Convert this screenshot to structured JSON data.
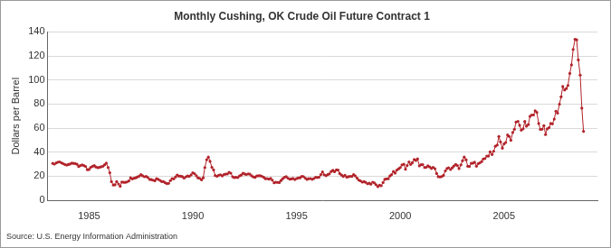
{
  "chart_data": {
    "type": "line",
    "title": "Monthly Cushing, OK Crude Oil Future Contract 1",
    "y_label": "Dollars per Barrel",
    "source": "Source: U.S. Energy Information Administration",
    "color": "#b2232a",
    "marker": "circle",
    "line_style": "solid",
    "grid": true,
    "xlim": [
      1983,
      2009.5
    ],
    "xticks": [
      1985,
      1990,
      1995,
      2000,
      2005
    ],
    "ylim": [
      0,
      140
    ],
    "yticks": [
      0,
      20,
      40,
      60,
      80,
      100,
      120,
      140
    ],
    "x": [
      1983.25,
      1983.33,
      1983.42,
      1983.5,
      1983.58,
      1983.67,
      1983.75,
      1983.83,
      1983.92,
      1984,
      1984.08,
      1984.17,
      1984.25,
      1984.33,
      1984.42,
      1984.5,
      1984.58,
      1984.67,
      1984.75,
      1984.83,
      1984.92,
      1985,
      1985.08,
      1985.17,
      1985.25,
      1985.33,
      1985.42,
      1985.5,
      1985.58,
      1985.67,
      1985.75,
      1985.83,
      1985.92,
      1986,
      1986.08,
      1986.17,
      1986.25,
      1986.33,
      1986.42,
      1986.5,
      1986.58,
      1986.67,
      1986.75,
      1986.83,
      1986.92,
      1987,
      1987.08,
      1987.17,
      1987.25,
      1987.33,
      1987.42,
      1987.5,
      1987.58,
      1987.67,
      1987.75,
      1987.83,
      1987.92,
      1988,
      1988.08,
      1988.17,
      1988.25,
      1988.33,
      1988.42,
      1988.5,
      1988.58,
      1988.67,
      1988.75,
      1988.83,
      1988.92,
      1989,
      1989.08,
      1989.17,
      1989.25,
      1989.33,
      1989.42,
      1989.5,
      1989.58,
      1989.67,
      1989.75,
      1989.83,
      1989.92,
      1990,
      1990.08,
      1990.17,
      1990.25,
      1990.33,
      1990.42,
      1990.5,
      1990.58,
      1990.67,
      1990.75,
      1990.83,
      1990.92,
      1991,
      1991.08,
      1991.17,
      1991.25,
      1991.33,
      1991.42,
      1991.5,
      1991.58,
      1991.67,
      1991.75,
      1991.83,
      1991.92,
      1992,
      1992.08,
      1992.17,
      1992.25,
      1992.33,
      1992.42,
      1992.5,
      1992.58,
      1992.67,
      1992.75,
      1992.83,
      1992.92,
      1993,
      1993.08,
      1993.17,
      1993.25,
      1993.33,
      1993.42,
      1993.5,
      1993.58,
      1993.67,
      1993.75,
      1993.83,
      1993.92,
      1994,
      1994.08,
      1994.17,
      1994.25,
      1994.33,
      1994.42,
      1994.5,
      1994.58,
      1994.67,
      1994.75,
      1994.83,
      1994.92,
      1995,
      1995.08,
      1995.17,
      1995.25,
      1995.33,
      1995.42,
      1995.5,
      1995.58,
      1995.67,
      1995.75,
      1995.83,
      1995.92,
      1996,
      1996.08,
      1996.17,
      1996.25,
      1996.33,
      1996.42,
      1996.5,
      1996.58,
      1996.67,
      1996.75,
      1996.83,
      1996.92,
      1997,
      1997.08,
      1997.17,
      1997.25,
      1997.33,
      1997.42,
      1997.5,
      1997.58,
      1997.67,
      1997.75,
      1997.83,
      1997.92,
      1998,
      1998.08,
      1998.17,
      1998.25,
      1998.33,
      1998.42,
      1998.5,
      1998.58,
      1998.67,
      1998.75,
      1998.83,
      1998.92,
      1999,
      1999.08,
      1999.17,
      1999.25,
      1999.33,
      1999.42,
      1999.5,
      1999.58,
      1999.67,
      1999.75,
      1999.83,
      1999.92,
      2000,
      2000.08,
      2000.17,
      2000.25,
      2000.33,
      2000.42,
      2000.5,
      2000.58,
      2000.67,
      2000.75,
      2000.83,
      2000.92,
      2001,
      2001.08,
      2001.17,
      2001.25,
      2001.33,
      2001.42,
      2001.5,
      2001.58,
      2001.67,
      2001.75,
      2001.83,
      2001.92,
      2002,
      2002.08,
      2002.17,
      2002.25,
      2002.33,
      2002.42,
      2002.5,
      2002.58,
      2002.67,
      2002.75,
      2002.83,
      2002.92,
      2003,
      2003.08,
      2003.17,
      2003.25,
      2003.33,
      2003.42,
      2003.5,
      2003.58,
      2003.67,
      2003.75,
      2003.83,
      2003.92,
      2004,
      2004.08,
      2004.17,
      2004.25,
      2004.33,
      2004.42,
      2004.5,
      2004.58,
      2004.67,
      2004.75,
      2004.83,
      2004.92,
      2005,
      2005.08,
      2005.17,
      2005.25,
      2005.33,
      2005.42,
      2005.5,
      2005.58,
      2005.67,
      2005.75,
      2005.83,
      2005.92,
      2006,
      2006.08,
      2006.17,
      2006.25,
      2006.33,
      2006.42,
      2006.5,
      2006.58,
      2006.67,
      2006.75,
      2006.83,
      2006.92,
      2007,
      2007.08,
      2007.17,
      2007.25,
      2007.33,
      2007.42,
      2007.5,
      2007.58,
      2007.67,
      2007.75,
      2007.83,
      2007.92,
      2008,
      2008.08,
      2008.17,
      2008.25,
      2008.33,
      2008.42,
      2008.5,
      2008.58,
      2008.67,
      2008.75,
      2008.83
    ],
    "values": [
      30.6,
      30.0,
      31.0,
      31.7,
      31.9,
      31.1,
      30.4,
      29.8,
      29.2,
      29.7,
      30.1,
      30.8,
      30.6,
      30.5,
      29.9,
      28.0,
      28.8,
      29.3,
      28.8,
      28.1,
      25.4,
      25.6,
      27.3,
      28.2,
      28.8,
      27.6,
      27.1,
      27.3,
      27.8,
      28.3,
      29.5,
      30.8,
      27.2,
      22.9,
      15.4,
      12.6,
      12.8,
      15.4,
      13.5,
      11.6,
      15.1,
      14.9,
      14.9,
      15.2,
      16.1,
      18.7,
      17.7,
      18.3,
      18.6,
      19.4,
      20.0,
      21.4,
      20.3,
      19.5,
      19.8,
      18.9,
      17.3,
      17.1,
      16.7,
      16.2,
      17.9,
      17.4,
      16.5,
      15.5,
      15.5,
      14.5,
      13.8,
      14.0,
      16.3,
      18.0,
      17.8,
      19.4,
      21.0,
      20.0,
      20.0,
      19.6,
      18.4,
      19.5,
      20.1,
      19.8,
      21.1,
      22.9,
      22.1,
      20.4,
      18.6,
      18.2,
      16.9,
      18.6,
      27.2,
      33.7,
      35.9,
      32.3,
      27.3,
      25.2,
      20.5,
      19.9,
      20.8,
      21.2,
      20.2,
      21.4,
      21.7,
      21.9,
      23.2,
      22.5,
      19.5,
      18.8,
      19.0,
      18.9,
      20.2,
      20.9,
      22.4,
      21.8,
      21.4,
      21.9,
      21.7,
      20.3,
      19.4,
      19.0,
      20.1,
      20.3,
      20.3,
      19.9,
      19.1,
      17.9,
      18.0,
      17.5,
      18.2,
      16.7,
      14.5,
      15.0,
      14.8,
      14.7,
      16.4,
      17.9,
      19.1,
      19.7,
      18.4,
      17.5,
      17.7,
      18.1,
      17.2,
      18.0,
      18.5,
      18.6,
      19.9,
      19.7,
      18.4,
      17.3,
      17.9,
      18.0,
      17.4,
      18.0,
      19.0,
      18.9,
      19.1,
      21.3,
      23.5,
      21.2,
      20.4,
      21.3,
      21.9,
      23.9,
      24.9,
      23.7,
      25.2,
      25.1,
      22.2,
      20.9,
      19.7,
      20.8,
      19.2,
      19.6,
      19.9,
      19.8,
      21.3,
      20.2,
      18.3,
      16.7,
      16.1,
      15.0,
      15.4,
      14.9,
      13.7,
      14.1,
      13.4,
      15.0,
      14.4,
      12.9,
      11.3,
      12.5,
      12.0,
      14.7,
      17.3,
      17.8,
      17.9,
      20.1,
      21.3,
      23.9,
      22.6,
      25.0,
      26.1,
      27.2,
      29.4,
      29.9,
      25.7,
      28.8,
      31.8,
      29.8,
      31.2,
      33.9,
      33.1,
      34.4,
      28.5,
      29.6,
      29.6,
      27.2,
      27.4,
      28.6,
      27.6,
      26.4,
      27.4,
      26.2,
      22.2,
      19.6,
      19.4,
      19.7,
      20.7,
      24.4,
      26.3,
      27.0,
      25.5,
      26.9,
      28.4,
      29.7,
      28.8,
      26.3,
      29.4,
      32.9,
      35.9,
      33.6,
      28.3,
      28.1,
      30.7,
      30.8,
      31.6,
      28.3,
      30.3,
      31.1,
      32.1,
      34.3,
      34.7,
      36.7,
      36.7,
      40.3,
      38.0,
      40.7,
      44.9,
      45.9,
      53.1,
      48.5,
      43.3,
      46.8,
      48.0,
      54.3,
      53.0,
      49.8,
      56.4,
      59.0,
      65.0,
      65.6,
      62.3,
      58.3,
      59.4,
      65.5,
      61.6,
      62.9,
      69.7,
      70.9,
      70.9,
      74.4,
      73.0,
      63.8,
      58.9,
      59.1,
      62.0,
      54.6,
      59.3,
      60.4,
      63.9,
      63.5,
      67.5,
      74.1,
      72.4,
      79.9,
      86.0,
      94.6,
      91.7,
      92.9,
      95.4,
      105.5,
      112.6,
      125.4,
      133.9,
      133.4,
      116.7,
      104.1,
      76.6,
      57.3
    ]
  }
}
